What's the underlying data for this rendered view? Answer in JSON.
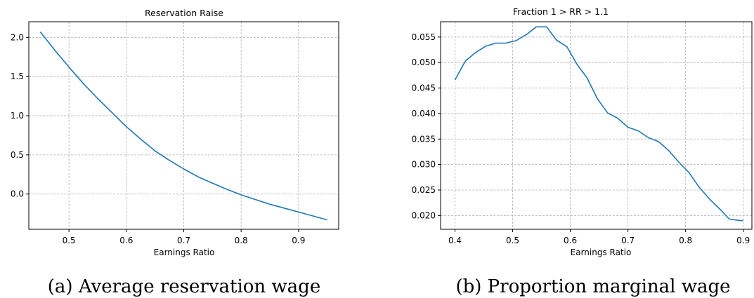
{
  "chart_data": [
    {
      "type": "line",
      "title": "Reservation Raise",
      "xlabel": "Earnings Ratio",
      "ylabel": "",
      "xlim": [
        0.43,
        0.97
      ],
      "ylim": [
        -0.45,
        2.2
      ],
      "xticks": [
        "0.5",
        "0.6",
        "0.7",
        "0.8",
        "0.9"
      ],
      "yticks": [
        "0.0",
        "0.5",
        "1.0",
        "1.5",
        "2.0"
      ],
      "grid": true,
      "color": "#1f77b4",
      "caption": "(a) Average reservation wage",
      "x": [
        0.45,
        0.475,
        0.5,
        0.525,
        0.55,
        0.575,
        0.6,
        0.625,
        0.65,
        0.675,
        0.7,
        0.725,
        0.75,
        0.775,
        0.8,
        0.825,
        0.85,
        0.875,
        0.9,
        0.925,
        0.95
      ],
      "y": [
        2.07,
        1.84,
        1.62,
        1.41,
        1.22,
        1.04,
        0.86,
        0.7,
        0.55,
        0.43,
        0.32,
        0.22,
        0.14,
        0.06,
        -0.01,
        -0.07,
        -0.13,
        -0.18,
        -0.23,
        -0.28,
        -0.33
      ]
    },
    {
      "type": "line",
      "title": "Fraction 1 > RR > 1.1",
      "xlabel": "Earnings Ratio",
      "ylabel": "",
      "xlim": [
        0.375,
        0.915
      ],
      "ylim": [
        0.0173,
        0.058
      ],
      "xticks": [
        "0.4",
        "0.5",
        "0.6",
        "0.7",
        "0.8",
        "0.9"
      ],
      "yticks": [
        "0.020",
        "0.025",
        "0.030",
        "0.035",
        "0.040",
        "0.045",
        "0.050",
        "0.055"
      ],
      "grid": true,
      "color": "#1f77b4",
      "caption": "(b) Proportion marginal wage",
      "x": [
        0.4,
        0.418,
        0.435,
        0.453,
        0.471,
        0.488,
        0.506,
        0.524,
        0.541,
        0.559,
        0.576,
        0.594,
        0.612,
        0.629,
        0.647,
        0.665,
        0.682,
        0.7,
        0.718,
        0.735,
        0.753,
        0.771,
        0.788,
        0.806,
        0.824,
        0.841,
        0.859,
        0.876,
        0.894,
        0.9
      ],
      "y": [
        0.0466,
        0.0503,
        0.0519,
        0.0532,
        0.0538,
        0.0538,
        0.0543,
        0.0555,
        0.057,
        0.057,
        0.0544,
        0.0531,
        0.0496,
        0.047,
        0.0429,
        0.0401,
        0.0391,
        0.0373,
        0.0366,
        0.0353,
        0.0345,
        0.0327,
        0.0305,
        0.0284,
        0.0255,
        0.0233,
        0.0213,
        0.0193,
        0.019,
        0.019
      ]
    }
  ]
}
